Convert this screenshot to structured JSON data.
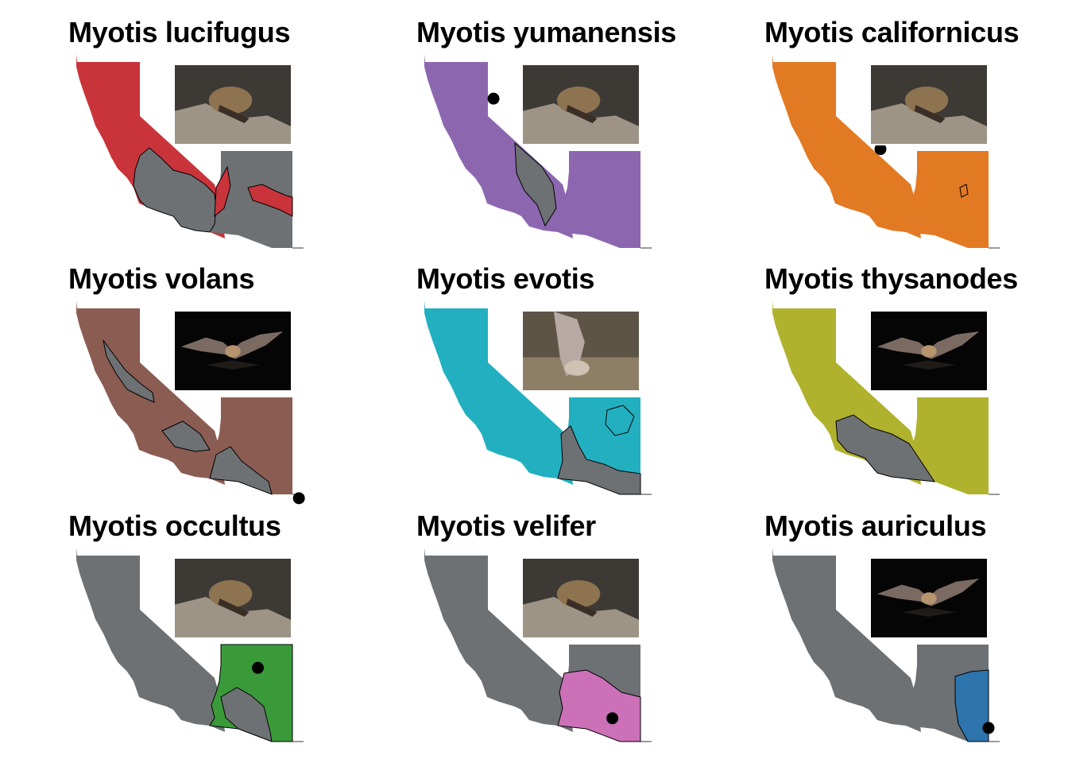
{
  "figure": {
    "panels": [
      {
        "id": "lucifugus",
        "title": "Myotis lucifugus",
        "color": "#c9343b",
        "range": "ca-wide",
        "dot": null,
        "photo": "bat-on-rock-photo"
      },
      {
        "id": "yumanensis",
        "title": "Myotis yumanensis",
        "color": "#8c67b0",
        "range": "ca-az",
        "dot": [
          0.32,
          0.23
        ],
        "photo": "bat-on-rock-photo"
      },
      {
        "id": "californicus",
        "title": "Myotis californicus",
        "color": "#e27a23",
        "range": "ca-az",
        "dot": [
          0.5,
          0.49
        ],
        "photo": "bat-on-rock-photo"
      },
      {
        "id": "volans",
        "title": "Myotis volans",
        "color": "#8b5c52",
        "range": "ca-az",
        "dot": [
          1.03,
          1.02
        ],
        "photo": "bat-in-flight-photo"
      },
      {
        "id": "evotis",
        "title": "Myotis evotis",
        "color": "#22b0c0",
        "range": "ca-az",
        "dot": null,
        "photo": "bat-drinking-photo"
      },
      {
        "id": "thysanodes",
        "title": "Myotis thysanodes",
        "color": "#b0b22e",
        "range": "ca-az",
        "dot": null,
        "photo": "bat-in-flight-photo"
      },
      {
        "id": "occultus",
        "title": "Myotis occultus",
        "color": "#3a9a3a",
        "range": "az",
        "dot": [
          0.84,
          0.62
        ],
        "photo": "bat-on-rock-photo"
      },
      {
        "id": "velifer",
        "title": "Myotis velifer",
        "color": "#cc70b8",
        "range": "az-south",
        "dot": [
          0.87,
          0.88
        ],
        "photo": "bat-on-rock-photo"
      },
      {
        "id": "auriculus",
        "title": "Myotis auriculus",
        "color": "#2e74ad",
        "range": "az-east",
        "dot": [
          1.0,
          0.93
        ],
        "photo": "bat-in-flight-photo"
      }
    ],
    "base_color": "#6e7174"
  }
}
